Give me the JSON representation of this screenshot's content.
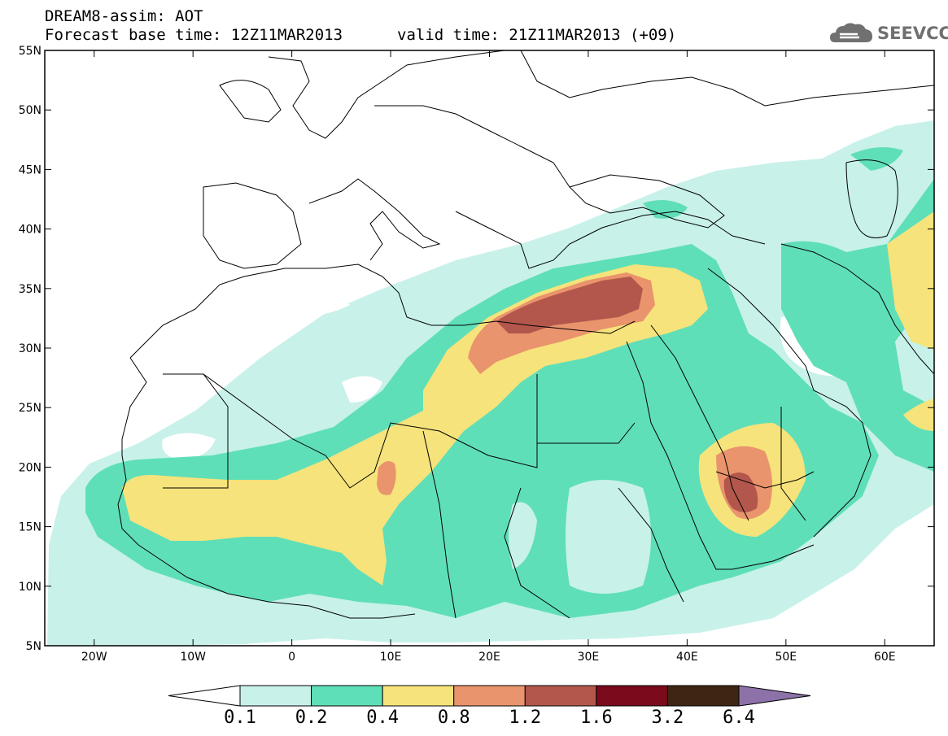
{
  "header": {
    "title": "DREAM8-assim: AOT",
    "base_time": "Forecast base time: 12Z11MAR2013",
    "valid_time": "valid time: 21Z11MAR2013 (+09)"
  },
  "logo": {
    "text": "SEEVCCC",
    "icon": "cloud-icon"
  },
  "map": {
    "lon_range": [
      -25,
      65
    ],
    "lat_range": [
      5,
      55
    ],
    "lat_ticks": [
      "55N",
      "50N",
      "45N",
      "40N",
      "35N",
      "30N",
      "25N",
      "20N",
      "15N",
      "10N",
      "5N"
    ],
    "lon_ticks": [
      "20W",
      "10W",
      "0",
      "10E",
      "20E",
      "30E",
      "40E",
      "50E",
      "60E"
    ]
  },
  "legend": {
    "levels": [
      "0.1",
      "0.2",
      "0.4",
      "0.8",
      "1.2",
      "1.6",
      "3.2",
      "6.4"
    ],
    "colors": [
      "#ffffff",
      "#c8f1ea",
      "#5fdfb8",
      "#f6e37b",
      "#e9946c",
      "#b3574d",
      "#7a0a1c",
      "#3e2614",
      "#8c72a8"
    ]
  }
}
